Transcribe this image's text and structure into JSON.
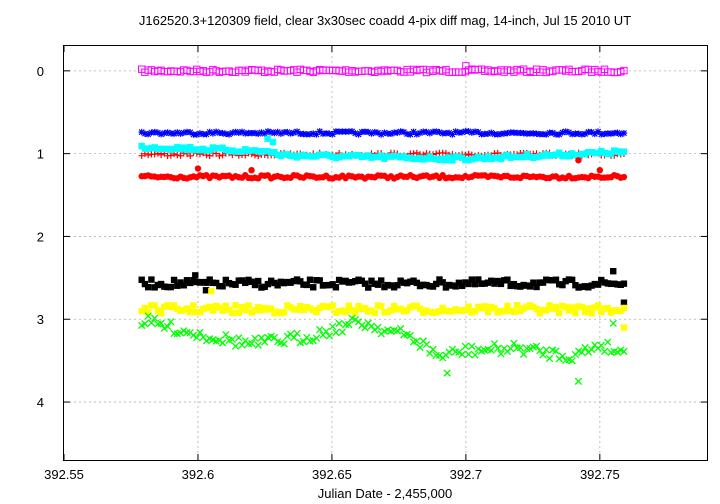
{
  "chart_data": {
    "type": "scatter",
    "title": "J162520.3+120309 field, clear 3x30sec coadd 4-pix diff mag, 14-inch, Jul 15 2010 UT",
    "xlabel": "Julian Date - 2,455,000",
    "ylabel": "",
    "xlim": [
      392.55,
      392.79
    ],
    "ylim": [
      4.7,
      -0.3
    ],
    "y_inverted": true,
    "grid": true,
    "xticks": [
      "392.55",
      "392.6",
      "392.65",
      "392.7",
      "392.75"
    ],
    "yticks": [
      "0",
      "1",
      "2",
      "3",
      "4"
    ],
    "x_range_of_observations": [
      392.579,
      392.759
    ],
    "series": [
      {
        "color": "#ff00ff",
        "marker": "open-square",
        "base": 0.0,
        "jitter": 0.02,
        "wave": [],
        "outliers": [
          [
            392.7,
            -0.06
          ]
        ]
      },
      {
        "color": "#0000ff",
        "marker": "star",
        "base": 0.75,
        "jitter": 0.02,
        "wave": [],
        "outliers": []
      },
      {
        "color": "#ff0000",
        "marker": "plus",
        "base": 1.01,
        "jitter": 0.02,
        "wave": [],
        "outliers": []
      },
      {
        "color": "#00ffff",
        "marker": "filled-square",
        "base": 1.04,
        "jitter": 0.025,
        "wave": [
          [
            392.58,
            0.92
          ],
          [
            392.625,
            0.97
          ],
          [
            392.632,
            1.02
          ],
          [
            392.66,
            1.04
          ],
          [
            392.7,
            1.06
          ],
          [
            392.73,
            1.02
          ],
          [
            392.758,
            0.98
          ]
        ],
        "outliers": [
          [
            392.628,
            0.86
          ],
          [
            392.626,
            0.82
          ]
        ]
      },
      {
        "color": "#ff0000",
        "marker": "filled-circle",
        "base": 1.28,
        "jitter": 0.02,
        "wave": [],
        "outliers": [
          [
            392.6,
            1.18
          ],
          [
            392.62,
            1.2
          ],
          [
            392.742,
            1.08
          ],
          [
            392.75,
            1.2
          ]
        ]
      },
      {
        "color": "#000000",
        "marker": "filled-square",
        "base": 2.57,
        "jitter": 0.05,
        "wave": [],
        "outliers": [
          [
            392.599,
            2.47
          ],
          [
            392.603,
            2.65
          ],
          [
            392.755,
            2.42
          ],
          [
            392.759,
            2.8
          ]
        ]
      },
      {
        "color": "#ffff00",
        "marker": "filled-square",
        "base": 2.88,
        "jitter": 0.05,
        "wave": [],
        "outliers": [
          [
            392.605,
            2.66
          ],
          [
            392.759,
            3.1
          ]
        ]
      },
      {
        "color": "#00ff00",
        "marker": "x",
        "base": 3.3,
        "jitter": 0.07,
        "wave": [
          [
            392.58,
            3.02
          ],
          [
            392.6,
            3.18
          ],
          [
            392.62,
            3.3
          ],
          [
            392.64,
            3.22
          ],
          [
            392.66,
            3.03
          ],
          [
            392.68,
            3.22
          ],
          [
            392.69,
            3.45
          ],
          [
            392.7,
            3.38
          ],
          [
            392.72,
            3.35
          ],
          [
            392.74,
            3.45
          ],
          [
            392.75,
            3.3
          ],
          [
            392.758,
            3.4
          ]
        ],
        "outliers": [
          [
            392.693,
            3.65
          ],
          [
            392.742,
            3.75
          ],
          [
            392.755,
            3.05
          ]
        ]
      }
    ]
  }
}
